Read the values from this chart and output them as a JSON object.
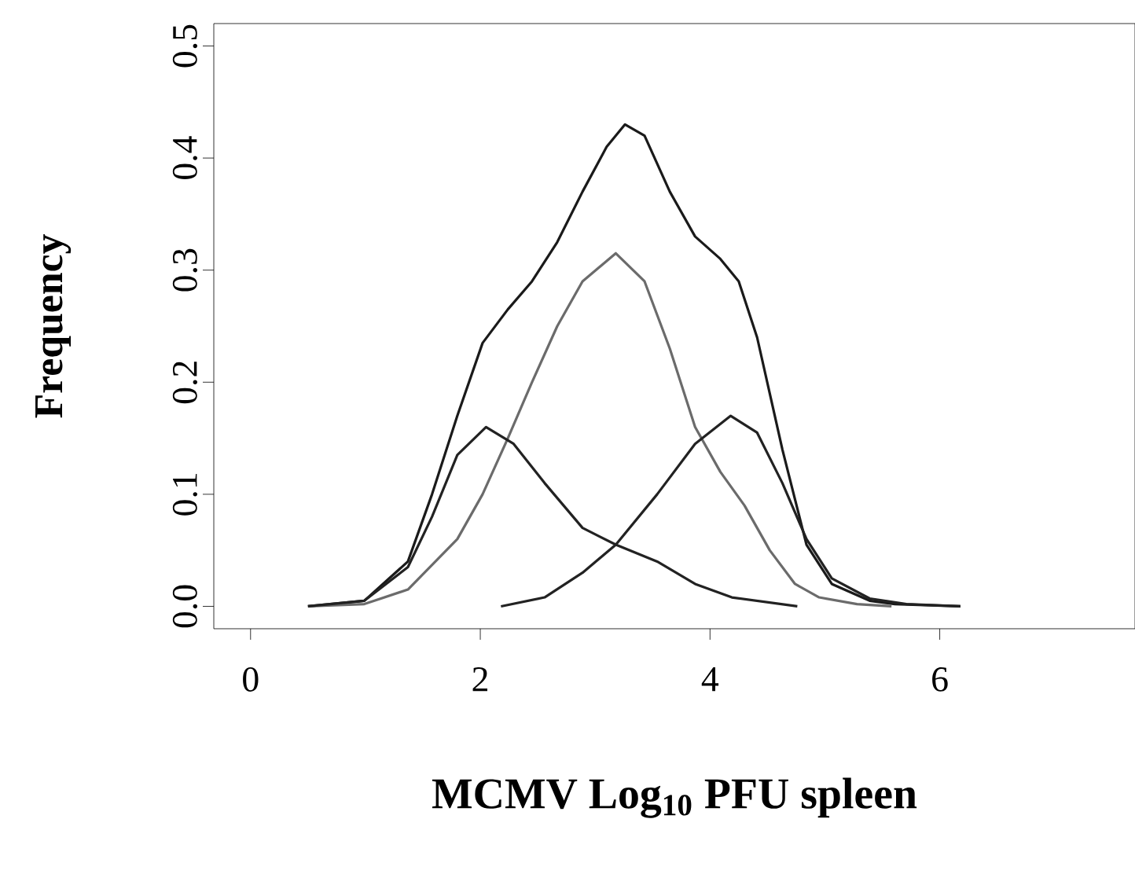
{
  "chart_data": {
    "type": "line",
    "xlabel": "MCMV Log$_{10}$ PFU spleen",
    "ylabel": "Frequency",
    "xlim": [
      -0.32,
      7.7
    ],
    "ylim": [
      -0.02,
      0.52
    ],
    "xticks": [
      0,
      2,
      4,
      6
    ],
    "yticks": [
      {
        "value": 0,
        "label": "0.0"
      },
      {
        "value": 0.1,
        "label": "0.1"
      },
      {
        "value": 0.2,
        "label": "0.2"
      },
      {
        "value": 0.3,
        "label": "0.3"
      },
      {
        "value": 0.4,
        "label": "0.4"
      },
      {
        "value": 0.5,
        "label": "0.5"
      }
    ],
    "marker": "none",
    "line_style": "solid",
    "series": [
      {
        "color": "#1a1a1a",
        "x": [
          0.5,
          0.99,
          1.37,
          1.58,
          1.8,
          2.02,
          2.24,
          2.45,
          2.67,
          2.89,
          3.1,
          3.26,
          3.43,
          3.65,
          3.87,
          4.09,
          4.25,
          4.41,
          4.63,
          4.84,
          5.06,
          5.39,
          5.61,
          6.18
        ],
        "values": [
          0,
          0.005,
          0.04,
          0.1,
          0.17,
          0.235,
          0.265,
          0.29,
          0.325,
          0.37,
          0.41,
          0.43,
          0.42,
          0.37,
          0.33,
          0.31,
          0.29,
          0.24,
          0.14,
          0.055,
          0.02,
          0.005,
          0.002,
          0
        ]
      },
      {
        "color": "#6b6b6b",
        "x": [
          0.5,
          0.99,
          1.37,
          1.8,
          2.02,
          2.24,
          2.45,
          2.67,
          2.89,
          3.18,
          3.43,
          3.65,
          3.87,
          4.09,
          4.3,
          4.52,
          4.74,
          4.95,
          5.28,
          5.58
        ],
        "values": [
          0,
          0.002,
          0.015,
          0.06,
          0.1,
          0.15,
          0.2,
          0.25,
          0.29,
          0.315,
          0.29,
          0.23,
          0.16,
          0.12,
          0.09,
          0.05,
          0.02,
          0.008,
          0.002,
          0
        ]
      },
      {
        "color": "#222222",
        "x": [
          0.5,
          0.99,
          1.37,
          1.58,
          1.8,
          2.05,
          2.29,
          2.56,
          2.89,
          3.18,
          3.54,
          3.87,
          4.19,
          4.76
        ],
        "values": [
          0,
          0.005,
          0.035,
          0.08,
          0.135,
          0.16,
          0.145,
          0.11,
          0.07,
          0.055,
          0.04,
          0.02,
          0.008,
          0
        ]
      },
      {
        "color": "#222222",
        "x": [
          2.18,
          2.56,
          2.89,
          3.18,
          3.54,
          3.87,
          4.18,
          4.41,
          4.63,
          4.84,
          5.06,
          5.39,
          5.71,
          6.18
        ],
        "values": [
          0,
          0.008,
          0.03,
          0.055,
          0.1,
          0.145,
          0.17,
          0.155,
          0.11,
          0.06,
          0.025,
          0.007,
          0.002,
          0
        ]
      }
    ]
  }
}
